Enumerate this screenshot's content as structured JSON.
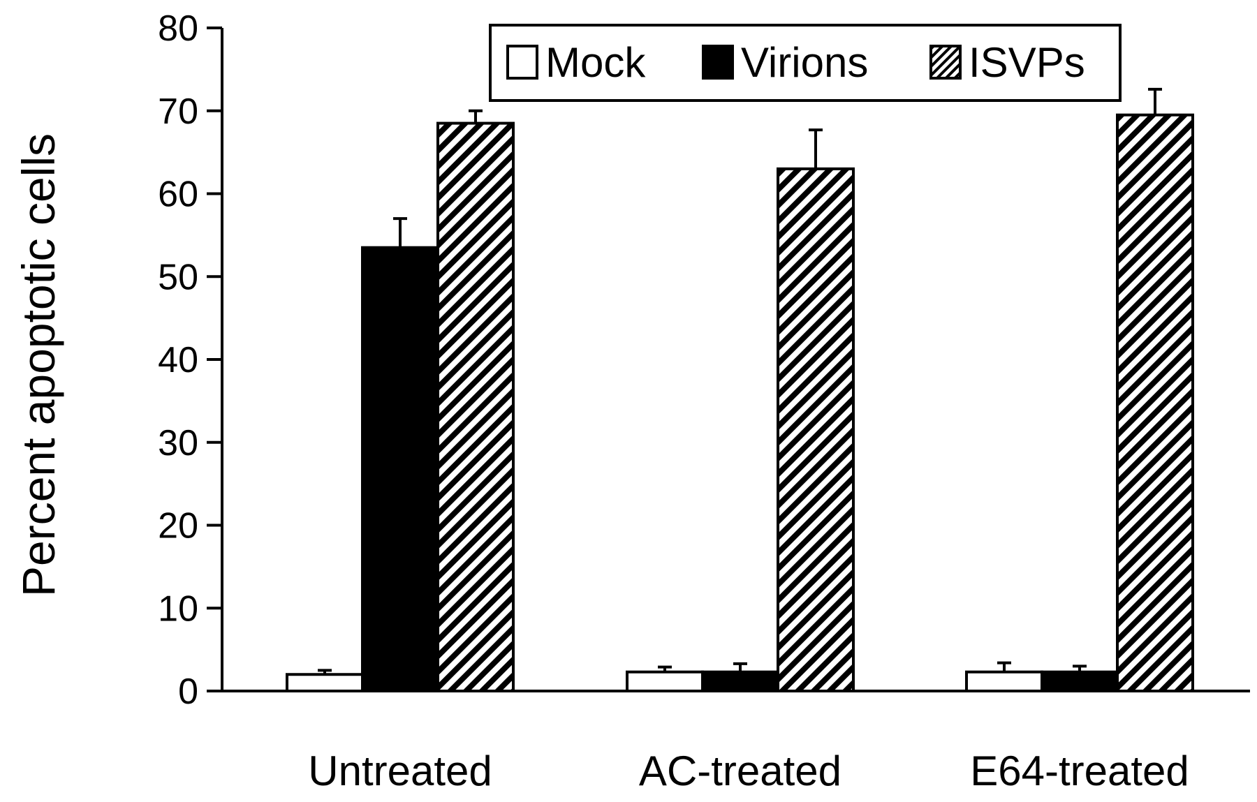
{
  "chart_data": {
    "type": "bar",
    "title": "",
    "xlabel": "",
    "ylabel": "Percent apoptotic cells",
    "ylim": [
      0,
      80
    ],
    "yticks": [
      0,
      10,
      20,
      30,
      40,
      50,
      60,
      70,
      80
    ],
    "grid": false,
    "legend_position": "top-right",
    "categories": [
      "Untreated",
      "AC-treated",
      "E64-treated"
    ],
    "series": [
      {
        "name": "Mock",
        "fill": "white",
        "color": "#ffffff",
        "values": [
          2,
          2.3,
          2.3
        ],
        "errors": [
          0.5,
          0.6,
          1.1
        ]
      },
      {
        "name": "Virions",
        "fill": "solid",
        "color": "#000000",
        "values": [
          53.5,
          2.3,
          2.3
        ],
        "errors": [
          3.5,
          1.0,
          0.7
        ]
      },
      {
        "name": "ISVPs",
        "fill": "hatched",
        "color": "#000000",
        "values": [
          68.5,
          63,
          69.5
        ],
        "errors": [
          1.5,
          4.7,
          3.1
        ]
      }
    ]
  }
}
